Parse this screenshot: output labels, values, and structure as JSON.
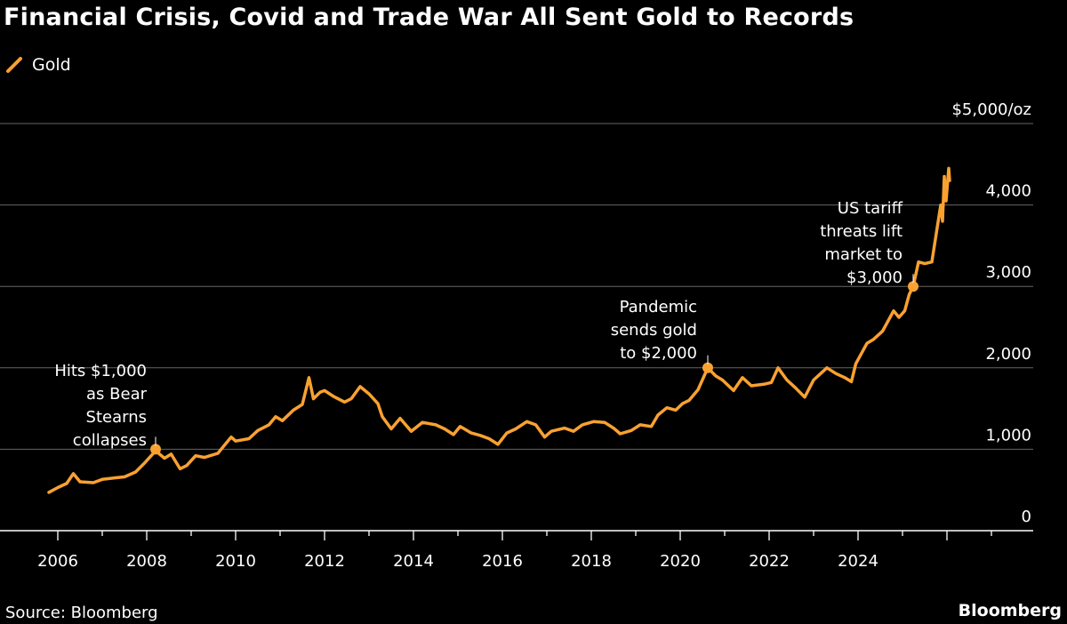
{
  "title": "Financial Crisis, Covid and Trade War All Sent Gold to Records",
  "legend": {
    "label": "Gold",
    "icon": "slash-line-icon"
  },
  "source": "Source: Bloomberg",
  "brand": "Bloomberg",
  "colors": {
    "line": "#F9A131",
    "background": "#000000",
    "grid": "#666666",
    "text": "#FFFFFF"
  },
  "chart_data": {
    "type": "line",
    "title": "Financial Crisis, Covid and Trade War All Sent Gold to Records",
    "ylabel": "$5,000/oz",
    "xlim": [
      2005.7,
      2027.9
    ],
    "ylim": [
      0,
      5000
    ],
    "grid": true,
    "legend_placement": "top-left",
    "x_ticks": [
      2006,
      2008,
      2010,
      2012,
      2014,
      2016,
      2018,
      2020,
      2022,
      2024
    ],
    "x_tick_labels": [
      "2006",
      "2008",
      "2010",
      "2012",
      "2014",
      "2016",
      "2018",
      "2020",
      "2022",
      "2024"
    ],
    "y_ticks": [
      0,
      1000,
      2000,
      3000,
      4000,
      5000
    ],
    "y_tick_labels": [
      "0",
      "1,000",
      "2,000",
      "3,000",
      "4,000",
      "$5,000/oz"
    ],
    "series": [
      {
        "name": "Gold",
        "points": [
          [
            2005.8,
            470
          ],
          [
            2006.0,
            530
          ],
          [
            2006.2,
            580
          ],
          [
            2006.35,
            700
          ],
          [
            2006.5,
            600
          ],
          [
            2006.8,
            590
          ],
          [
            2007.0,
            630
          ],
          [
            2007.3,
            650
          ],
          [
            2007.5,
            660
          ],
          [
            2007.75,
            720
          ],
          [
            2007.95,
            830
          ],
          [
            2008.1,
            920
          ],
          [
            2008.2,
            980
          ],
          [
            2008.4,
            890
          ],
          [
            2008.55,
            940
          ],
          [
            2008.75,
            760
          ],
          [
            2008.9,
            800
          ],
          [
            2009.1,
            920
          ],
          [
            2009.3,
            900
          ],
          [
            2009.6,
            950
          ],
          [
            2009.9,
            1150
          ],
          [
            2010.0,
            1100
          ],
          [
            2010.3,
            1130
          ],
          [
            2010.5,
            1230
          ],
          [
            2010.75,
            1300
          ],
          [
            2010.9,
            1400
          ],
          [
            2011.05,
            1350
          ],
          [
            2011.3,
            1480
          ],
          [
            2011.5,
            1550
          ],
          [
            2011.65,
            1880
          ],
          [
            2011.75,
            1620
          ],
          [
            2011.9,
            1700
          ],
          [
            2012.0,
            1720
          ],
          [
            2012.2,
            1650
          ],
          [
            2012.45,
            1580
          ],
          [
            2012.6,
            1620
          ],
          [
            2012.8,
            1770
          ],
          [
            2013.0,
            1680
          ],
          [
            2013.2,
            1560
          ],
          [
            2013.3,
            1400
          ],
          [
            2013.5,
            1250
          ],
          [
            2013.7,
            1380
          ],
          [
            2013.95,
            1220
          ],
          [
            2014.2,
            1330
          ],
          [
            2014.5,
            1300
          ],
          [
            2014.7,
            1250
          ],
          [
            2014.9,
            1180
          ],
          [
            2015.05,
            1280
          ],
          [
            2015.3,
            1200
          ],
          [
            2015.5,
            1170
          ],
          [
            2015.7,
            1130
          ],
          [
            2015.9,
            1060
          ],
          [
            2016.1,
            1200
          ],
          [
            2016.3,
            1250
          ],
          [
            2016.55,
            1340
          ],
          [
            2016.75,
            1300
          ],
          [
            2016.95,
            1150
          ],
          [
            2017.1,
            1220
          ],
          [
            2017.4,
            1260
          ],
          [
            2017.6,
            1220
          ],
          [
            2017.8,
            1300
          ],
          [
            2018.05,
            1340
          ],
          [
            2018.3,
            1330
          ],
          [
            2018.5,
            1260
          ],
          [
            2018.65,
            1190
          ],
          [
            2018.9,
            1230
          ],
          [
            2019.1,
            1300
          ],
          [
            2019.35,
            1280
          ],
          [
            2019.5,
            1420
          ],
          [
            2019.7,
            1510
          ],
          [
            2019.9,
            1480
          ],
          [
            2020.05,
            1560
          ],
          [
            2020.2,
            1600
          ],
          [
            2020.4,
            1730
          ],
          [
            2020.62,
            2000
          ],
          [
            2020.8,
            1900
          ],
          [
            2020.95,
            1850
          ],
          [
            2021.2,
            1720
          ],
          [
            2021.4,
            1880
          ],
          [
            2021.6,
            1780
          ],
          [
            2021.9,
            1800
          ],
          [
            2022.05,
            1820
          ],
          [
            2022.2,
            2000
          ],
          [
            2022.4,
            1850
          ],
          [
            2022.6,
            1750
          ],
          [
            2022.8,
            1640
          ],
          [
            2023.0,
            1850
          ],
          [
            2023.3,
            2000
          ],
          [
            2023.5,
            1930
          ],
          [
            2023.7,
            1880
          ],
          [
            2023.85,
            1830
          ],
          [
            2023.95,
            2050
          ],
          [
            2024.2,
            2300
          ],
          [
            2024.35,
            2350
          ],
          [
            2024.55,
            2450
          ],
          [
            2024.8,
            2700
          ],
          [
            2024.92,
            2620
          ],
          [
            2025.05,
            2700
          ],
          [
            2025.15,
            2900
          ],
          [
            2025.24,
            3000
          ],
          [
            2025.36,
            3300
          ],
          [
            2025.5,
            3280
          ],
          [
            2025.66,
            3300
          ],
          [
            2025.86,
            4000
          ],
          [
            2025.9,
            3800
          ],
          [
            2025.94,
            4350
          ],
          [
            2025.98,
            4050
          ],
          [
            2026.04,
            4450
          ],
          [
            2026.06,
            4300
          ]
        ]
      }
    ],
    "annotations": [
      {
        "text": [
          "Hits $1,000",
          "as Bear",
          "Stearns",
          "collapses"
        ],
        "x": 2008.2,
        "y": 1000
      },
      {
        "text": [
          "Pandemic",
          "sends gold",
          "to $2,000"
        ],
        "x": 2020.62,
        "y": 2000
      },
      {
        "text": [
          "US tariff",
          "threats lift",
          "market to",
          "$3,000"
        ],
        "x": 2025.24,
        "y": 3000
      }
    ]
  }
}
